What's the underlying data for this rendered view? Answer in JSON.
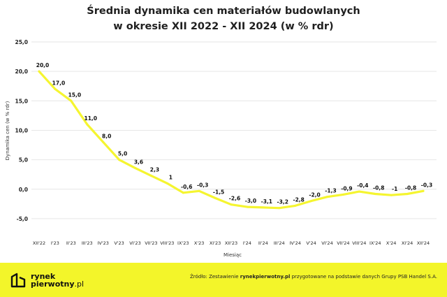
{
  "chart_data": {
    "type": "line",
    "title_line1": "Średnia dynamika cen materiałów budowlanych",
    "title_line2": "w okresie XII 2022 - XII 2024 (w % rdr)",
    "xlabel": "Miesiąc",
    "ylabel": "Dynamika cen (w % rdr)",
    "ylim": [
      -7.5,
      25
    ],
    "y_ticks": [
      25,
      20,
      15,
      10,
      5,
      0,
      -5
    ],
    "y_tick_labels": [
      "25,0",
      "20,0",
      "15,0",
      "10,0",
      "5,0",
      "0,0",
      "-5,0"
    ],
    "categories": [
      "XII'22",
      "I'23",
      "II'23",
      "III'23",
      "IV'23",
      "V'23",
      "VI'23",
      "VII'23",
      "VIII'23",
      "IX'23",
      "X'23",
      "XI'23",
      "XII'23",
      "I'24",
      "II'24",
      "III'24",
      "IV'24",
      "V'24",
      "VI'24",
      "VII'24",
      "VIII'24",
      "IX'24",
      "X'24",
      "XI'24",
      "XII'24"
    ],
    "values": [
      20.0,
      17.0,
      15.0,
      11.0,
      8.0,
      5.0,
      3.6,
      2.3,
      1.0,
      -0.6,
      -0.3,
      -1.5,
      -2.6,
      -3.0,
      -3.1,
      -3.2,
      -2.8,
      -2.0,
      -1.3,
      -0.9,
      -0.4,
      -0.8,
      -1.0,
      -0.8,
      -0.3
    ],
    "data_labels": [
      "20,0",
      "17,0",
      "15,0",
      "11,0",
      "8,0",
      "5,0",
      "3,6",
      "2,3",
      "1",
      "-0,6",
      "-0,3",
      "-1,5",
      "-2,6",
      "-3,0",
      "-3,1",
      "-3,2",
      "-2,8",
      "-2,0",
      "-1,3",
      "-0,9",
      "-0,4",
      "-0,8",
      "-1",
      "-0,8",
      "-0,3"
    ],
    "line_color": "#f5f530",
    "grid": true
  },
  "footer": {
    "logo_line1": "rynek",
    "logo_line2_main": "pierwotny",
    "logo_line2_suffix": ".pl",
    "source_prefix": "Źródło: Zestawienie ",
    "source_bold": "rynekpierwotny.pl",
    "source_suffix": " przygotowane na podstawie danych Grupy PSB Handel S.A.",
    "background": "#f3f52a"
  }
}
